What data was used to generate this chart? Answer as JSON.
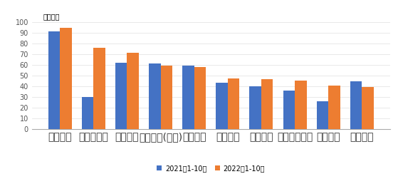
{
  "categories": [
    "一汽大众",
    "比亚迪股份",
    "上汽大众",
    "东风有限(本部)",
    "上汽通用",
    "广汽丰田",
    "吉利控股",
    "上汽通用五菱",
    "长安汽车",
    "一汽丰田"
  ],
  "values_2021": [
    91,
    30,
    62,
    61,
    59.5,
    43,
    39.5,
    36,
    26,
    44.5
  ],
  "values_2022": [
    94.5,
    76,
    71,
    59,
    58,
    47,
    46.5,
    45.5,
    40.5,
    39
  ],
  "color_2021": "#4472C4",
  "color_2022": "#ED7D31",
  "ylabel": "（万辆）",
  "legend_2021": "2021年1-10月",
  "legend_2022": "2022年1-10月",
  "ylim": [
    0,
    100
  ],
  "yticks": [
    0,
    10,
    20,
    30,
    40,
    50,
    60,
    70,
    80,
    90,
    100
  ],
  "background_color": "#ffffff"
}
